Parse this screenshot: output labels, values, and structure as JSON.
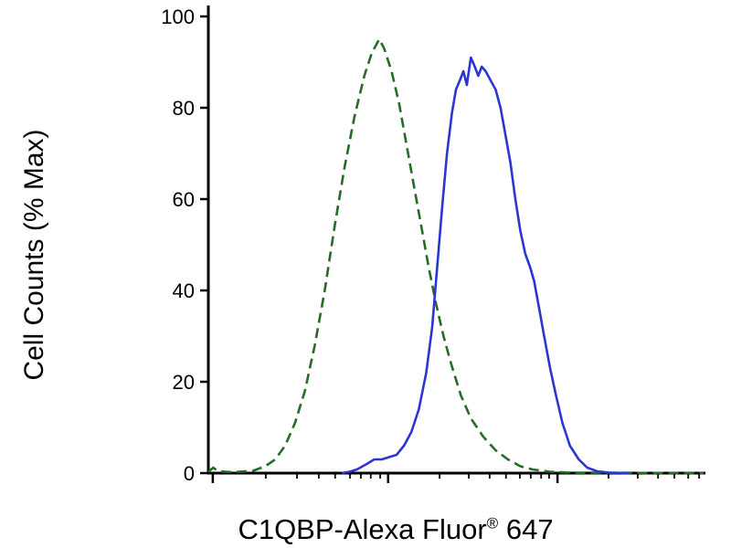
{
  "figure": {
    "background": "#ffffff"
  },
  "chart_data": {
    "type": "line",
    "subtype": "flow-cytometry-histogram-overlay",
    "title": "",
    "ylabel": "Cell Counts (% Max)",
    "xlabel_main": "C1QBP-Alexa Fluor",
    "xlabel_registered": "®",
    "xlabel_suffix": " 647",
    "x_scale": "log",
    "ylim": [
      0,
      100
    ],
    "yticks": [
      0,
      20,
      40,
      60,
      80,
      100
    ],
    "grid": "off",
    "legend_position": "none",
    "axis_color": "#000000",
    "tick_label_color": "#000000",
    "xticks": [
      {
        "f": 0.009,
        "major": true
      },
      {
        "f": 0.116,
        "major": false
      },
      {
        "f": 0.179,
        "major": false
      },
      {
        "f": 0.223,
        "major": false
      },
      {
        "f": 0.256,
        "major": false
      },
      {
        "f": 0.286,
        "major": false
      },
      {
        "f": 0.308,
        "major": false
      },
      {
        "f": 0.328,
        "major": false
      },
      {
        "f": 0.347,
        "major": false
      },
      {
        "f": 0.363,
        "major": true
      },
      {
        "f": 0.467,
        "major": false
      },
      {
        "f": 0.526,
        "major": false
      },
      {
        "f": 0.568,
        "major": false
      },
      {
        "f": 0.601,
        "major": false
      },
      {
        "f": 0.629,
        "major": false
      },
      {
        "f": 0.651,
        "major": false
      },
      {
        "f": 0.672,
        "major": false
      },
      {
        "f": 0.688,
        "major": false
      },
      {
        "f": 0.705,
        "major": true
      },
      {
        "f": 0.808,
        "major": false
      },
      {
        "f": 0.867,
        "major": false
      },
      {
        "f": 0.908,
        "major": false
      },
      {
        "f": 0.941,
        "major": false
      },
      {
        "f": 0.969,
        "major": false
      },
      {
        "f": 0.991,
        "major": false
      }
    ],
    "series": [
      {
        "name": "green-dashed-curve",
        "style": "dashed",
        "color": "#256d25",
        "dash": "11 6",
        "points": [
          [
            0.0,
            0.3
          ],
          [
            0.01,
            1.2
          ],
          [
            0.02,
            0.4
          ],
          [
            0.05,
            0.2
          ],
          [
            0.09,
            0.5
          ],
          [
            0.115,
            1.5
          ],
          [
            0.135,
            3
          ],
          [
            0.155,
            6
          ],
          [
            0.175,
            11
          ],
          [
            0.195,
            18
          ],
          [
            0.215,
            28
          ],
          [
            0.235,
            40
          ],
          [
            0.255,
            54
          ],
          [
            0.275,
            67
          ],
          [
            0.295,
            78
          ],
          [
            0.315,
            87
          ],
          [
            0.33,
            92
          ],
          [
            0.345,
            95
          ],
          [
            0.355,
            93
          ],
          [
            0.37,
            88
          ],
          [
            0.385,
            81
          ],
          [
            0.4,
            72
          ],
          [
            0.415,
            63
          ],
          [
            0.43,
            54
          ],
          [
            0.445,
            45
          ],
          [
            0.46,
            37
          ],
          [
            0.475,
            30
          ],
          [
            0.49,
            24
          ],
          [
            0.51,
            17
          ],
          [
            0.53,
            12
          ],
          [
            0.555,
            8
          ],
          [
            0.58,
            5
          ],
          [
            0.605,
            3
          ],
          [
            0.63,
            1.5
          ],
          [
            0.655,
            0.8
          ],
          [
            0.69,
            0.3
          ],
          [
            0.73,
            0.1
          ],
          [
            1.0,
            0.0
          ]
        ]
      },
      {
        "name": "blue-solid-curve",
        "style": "solid",
        "color": "#2a36cf",
        "dash": "",
        "points": [
          [
            0.27,
            0.0
          ],
          [
            0.285,
            0.3
          ],
          [
            0.3,
            0.8
          ],
          [
            0.32,
            2
          ],
          [
            0.335,
            3
          ],
          [
            0.35,
            3
          ],
          [
            0.365,
            3.5
          ],
          [
            0.38,
            4
          ],
          [
            0.395,
            6
          ],
          [
            0.41,
            9
          ],
          [
            0.425,
            14
          ],
          [
            0.44,
            22
          ],
          [
            0.452,
            32
          ],
          [
            0.462,
            45
          ],
          [
            0.472,
            58
          ],
          [
            0.482,
            70
          ],
          [
            0.492,
            79
          ],
          [
            0.5,
            84
          ],
          [
            0.508,
            86
          ],
          [
            0.515,
            88
          ],
          [
            0.522,
            85
          ],
          [
            0.53,
            91
          ],
          [
            0.538,
            89
          ],
          [
            0.545,
            87
          ],
          [
            0.552,
            89
          ],
          [
            0.56,
            88
          ],
          [
            0.57,
            86
          ],
          [
            0.58,
            84
          ],
          [
            0.59,
            80
          ],
          [
            0.6,
            74
          ],
          [
            0.61,
            68
          ],
          [
            0.62,
            60
          ],
          [
            0.63,
            53
          ],
          [
            0.64,
            48
          ],
          [
            0.65,
            45
          ],
          [
            0.658,
            42
          ],
          [
            0.668,
            36
          ],
          [
            0.678,
            30
          ],
          [
            0.69,
            23
          ],
          [
            0.702,
            17
          ],
          [
            0.715,
            11
          ],
          [
            0.73,
            6
          ],
          [
            0.748,
            3
          ],
          [
            0.765,
            1.2
          ],
          [
            0.785,
            0.4
          ],
          [
            0.81,
            0.1
          ],
          [
            0.85,
            0.0
          ]
        ]
      }
    ]
  }
}
